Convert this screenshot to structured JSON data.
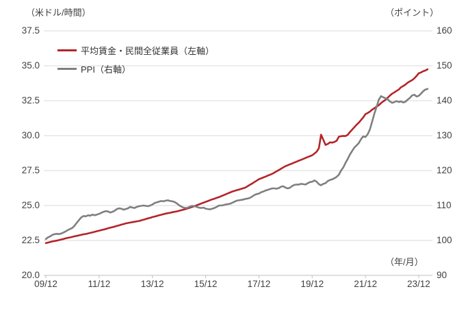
{
  "axes_units": {
    "left": "（米ドル/時間）",
    "right": "（ポイント）",
    "x": "（年/月）"
  },
  "legend": {
    "items": [
      {
        "label": "平均賃金・民間全従業員（左軸）",
        "color": "#b42328"
      },
      {
        "label": "PPI（右軸）",
        "color": "#7f7f7f"
      }
    ]
  },
  "left_axis": {
    "min": 20,
    "max": 37.5,
    "ticks": [
      "37.5",
      "35.0",
      "32.5",
      "30.0",
      "27.5",
      "25.0",
      "22.5",
      "20.0"
    ]
  },
  "right_axis": {
    "min": 90,
    "max": 160,
    "ticks": [
      "160",
      "150",
      "140",
      "130",
      "120",
      "110",
      "100",
      "90"
    ]
  },
  "x_axis": {
    "tick_labels": [
      "09/12",
      "11/12",
      "13/12",
      "15/12",
      "17/12",
      "19/12",
      "21/12",
      "23/12"
    ]
  },
  "chart_data": {
    "type": "line",
    "frequency": "monthly",
    "x_start": "2009/12",
    "x_end": "2024/04",
    "x_tick_labels": [
      "09/12",
      "11/12",
      "13/12",
      "15/12",
      "17/12",
      "19/12",
      "21/12",
      "23/12"
    ],
    "left_ylabel": "（米ドル/時間）",
    "right_ylabel": "（ポイント）",
    "xlabel": "（年/月）",
    "left_ylim": [
      20,
      37.5
    ],
    "right_ylim": [
      90,
      160
    ],
    "grid": "horizontal",
    "legend_position": "top-left-inside",
    "series": [
      {
        "name": "平均賃金・民間全従業員（左軸）",
        "axis": "left",
        "color": "#b42328",
        "values": [
          22.31,
          22.35,
          22.39,
          22.43,
          22.46,
          22.49,
          22.53,
          22.57,
          22.61,
          22.65,
          22.69,
          22.72,
          22.76,
          22.8,
          22.83,
          22.87,
          22.9,
          22.94,
          22.96,
          23.0,
          23.04,
          23.08,
          23.12,
          23.16,
          23.2,
          23.24,
          23.28,
          23.32,
          23.37,
          23.41,
          23.45,
          23.49,
          23.54,
          23.58,
          23.63,
          23.67,
          23.72,
          23.75,
          23.78,
          23.81,
          23.84,
          23.87,
          23.89,
          23.94,
          23.98,
          24.03,
          24.08,
          24.12,
          24.17,
          24.21,
          24.25,
          24.3,
          24.34,
          24.38,
          24.42,
          24.45,
          24.48,
          24.52,
          24.55,
          24.58,
          24.62,
          24.66,
          24.7,
          24.75,
          24.8,
          24.85,
          24.9,
          24.96,
          25.02,
          25.08,
          25.14,
          25.2,
          25.26,
          25.32,
          25.38,
          25.44,
          25.49,
          25.55,
          25.6,
          25.67,
          25.73,
          25.8,
          25.87,
          25.93,
          26.0,
          26.05,
          26.1,
          26.14,
          26.19,
          26.24,
          26.29,
          26.39,
          26.49,
          26.58,
          26.68,
          26.78,
          26.88,
          26.94,
          27.01,
          27.07,
          27.14,
          27.2,
          27.27,
          27.36,
          27.45,
          27.54,
          27.63,
          27.73,
          27.82,
          27.88,
          27.95,
          28.01,
          28.08,
          28.14,
          28.21,
          28.27,
          28.34,
          28.4,
          28.47,
          28.53,
          28.6,
          28.72,
          28.85,
          29.1,
          30.07,
          29.7,
          29.34,
          29.4,
          29.52,
          29.5,
          29.55,
          29.63,
          29.92,
          29.96,
          29.98,
          29.97,
          30.06,
          30.26,
          30.43,
          30.61,
          30.78,
          30.93,
          31.12,
          31.31,
          31.54,
          31.62,
          31.72,
          31.86,
          31.96,
          32.08,
          32.18,
          32.33,
          32.45,
          32.56,
          32.71,
          32.87,
          33.0,
          33.1,
          33.2,
          33.3,
          33.46,
          33.55,
          33.65,
          33.79,
          33.88,
          33.97,
          34.1,
          34.27,
          34.46,
          34.52,
          34.61,
          34.66,
          34.75
        ]
      },
      {
        "name": "PPI（右軸）",
        "axis": "right",
        "color": "#7f7f7f",
        "values": [
          100.4,
          100.9,
          101.2,
          101.6,
          101.8,
          101.9,
          101.8,
          102.0,
          102.3,
          102.6,
          103.0,
          103.3,
          103.6,
          104.3,
          105.1,
          105.9,
          106.6,
          107.0,
          106.9,
          107.2,
          107.1,
          107.4,
          107.2,
          107.4,
          107.6,
          107.9,
          108.2,
          108.4,
          108.3,
          108.0,
          108.2,
          108.5,
          109.0,
          109.2,
          109.1,
          108.8,
          109.0,
          109.2,
          109.6,
          109.4,
          109.3,
          109.6,
          109.8,
          109.9,
          110.0,
          109.9,
          109.8,
          110.0,
          110.3,
          110.7,
          110.9,
          111.1,
          111.3,
          111.2,
          111.4,
          111.5,
          111.3,
          111.2,
          111.0,
          110.6,
          110.1,
          109.7,
          109.4,
          109.3,
          109.4,
          109.7,
          109.9,
          109.8,
          109.6,
          109.4,
          109.3,
          109.4,
          109.1,
          109.0,
          108.9,
          109.1,
          109.3,
          109.6,
          110.0,
          110.0,
          110.1,
          110.3,
          110.4,
          110.5,
          110.8,
          111.1,
          111.4,
          111.5,
          111.6,
          111.7,
          111.9,
          112.0,
          112.2,
          112.6,
          113.0,
          113.3,
          113.4,
          113.8,
          114.0,
          114.3,
          114.5,
          114.7,
          114.9,
          114.9,
          114.8,
          115.0,
          115.4,
          115.5,
          115.1,
          114.9,
          115.1,
          115.6,
          115.9,
          116.0,
          116.0,
          116.2,
          116.1,
          116.0,
          116.4,
          116.7,
          116.8,
          117.2,
          116.8,
          116.1,
          115.8,
          116.2,
          116.4,
          117.0,
          117.3,
          117.5,
          117.8,
          118.2,
          118.8,
          120.0,
          120.9,
          122.2,
          123.3,
          124.6,
          125.6,
          126.6,
          127.2,
          127.9,
          129.0,
          129.8,
          129.6,
          130.4,
          131.8,
          134.0,
          136.3,
          138.2,
          140.3,
          141.3,
          141.0,
          140.7,
          140.4,
          139.8,
          139.4,
          139.6,
          139.9,
          139.6,
          139.8,
          139.5,
          139.7,
          140.3,
          140.8,
          141.5,
          141.7,
          141.2,
          141.4,
          142.0,
          142.7,
          143.2,
          143.4
        ]
      }
    ]
  }
}
